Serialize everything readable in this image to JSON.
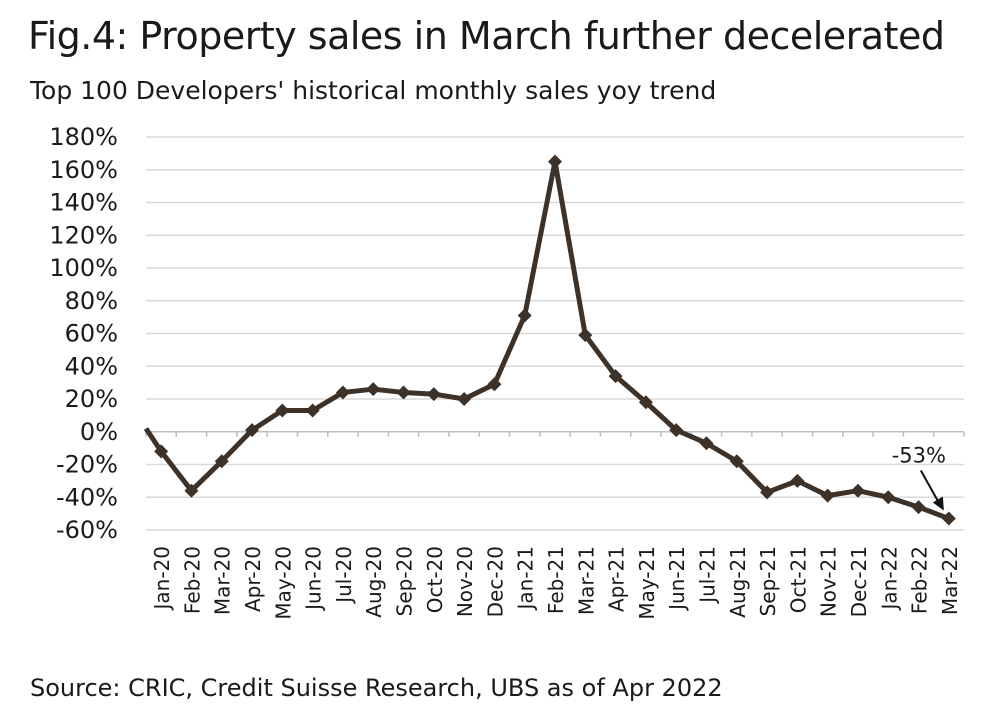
{
  "title": "Fig.4: Property sales in March further decelerated",
  "subtitle": "Top 100 Developers' historical monthly sales yoy trend",
  "source": "Source: CRIC, Credit Suisse Research, UBS as of Apr 2022",
  "colors": {
    "line": "#3d3128",
    "grid": "#d9d9d9",
    "text": "#1a1a1a"
  },
  "chart_data": {
    "type": "line",
    "x": [
      "Jan-20",
      "Feb-20",
      "Mar-20",
      "Apr-20",
      "May-20",
      "Jun-20",
      "Jul-20",
      "Aug-20",
      "Sep-20",
      "Oct-20",
      "Nov-20",
      "Dec-20",
      "Jan-21",
      "Feb-21",
      "Mar-21",
      "Apr-21",
      "May-21",
      "Jun-21",
      "Jul-21",
      "Aug-21",
      "Sep-21",
      "Oct-21",
      "Nov-21",
      "Dec-21",
      "Jan-22",
      "Feb-22",
      "Mar-22"
    ],
    "series": [
      {
        "values": [
          -12,
          -36,
          -18,
          1,
          13,
          13,
          24,
          26,
          24,
          23,
          20,
          29,
          71,
          165,
          59,
          34,
          18,
          1,
          -7,
          -18,
          -37,
          -30,
          -39,
          -36,
          -40,
          -46,
          -53
        ]
      }
    ],
    "ylim": [
      -60,
      180
    ],
    "yticks": [
      180,
      160,
      140,
      120,
      100,
      80,
      60,
      40,
      20,
      0,
      -20,
      -40,
      -60
    ],
    "ytick_labels": [
      "180%",
      "160%",
      "140%",
      "120%",
      "100%",
      "80%",
      "60%",
      "40%",
      "20%",
      "0%",
      "-20%",
      "-40%",
      "-60%"
    ],
    "grid": true,
    "annotations": [
      {
        "text": "-53%",
        "x": "Mar-22",
        "y": -53
      }
    ]
  }
}
